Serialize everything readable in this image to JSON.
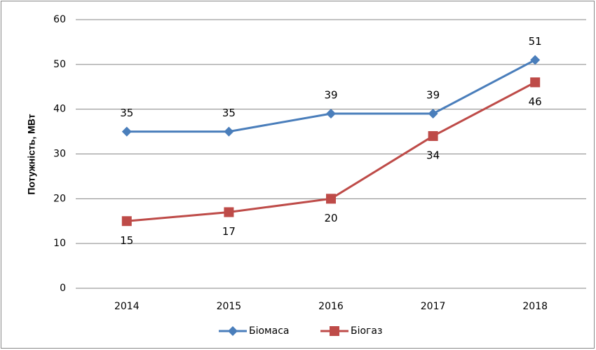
{
  "chart_data": {
    "type": "line",
    "y_label": "Потужність, МВт",
    "categories": [
      "2014",
      "2015",
      "2016",
      "2017",
      "2018"
    ],
    "series": [
      {
        "name": "Біомаса",
        "color": "#4a7ebb",
        "marker": "diamond",
        "label_position": "above",
        "values": [
          35,
          35,
          39,
          39,
          51
        ]
      },
      {
        "name": "Біогаз",
        "color": "#be4b48",
        "marker": "square",
        "label_position": "below",
        "values": [
          15,
          17,
          20,
          34,
          46
        ]
      }
    ],
    "ylim": [
      0,
      60
    ],
    "yticks": [
      0,
      10,
      20,
      30,
      40,
      50,
      60
    ],
    "grid": true,
    "legend": "bottom"
  }
}
